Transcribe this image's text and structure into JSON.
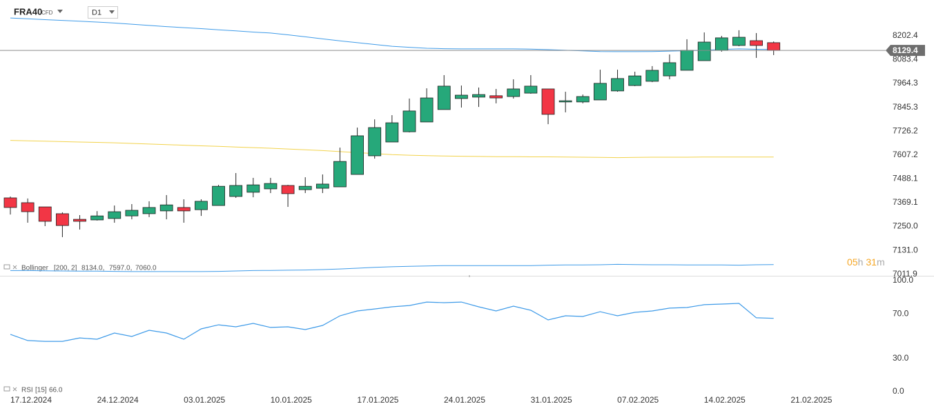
{
  "header": {
    "symbol": "FRA40",
    "instrument": "CFD",
    "timeframe": "D1"
  },
  "countdown": [
    "05",
    "h",
    "31",
    "m"
  ],
  "chart_data": [
    {
      "type": "candlestick",
      "open": [
        7393,
        7369,
        7348,
        7314,
        7286,
        7283,
        7290,
        7303,
        7314,
        7328,
        7345,
        7334,
        7355,
        7400,
        7421,
        7438,
        7455,
        7434,
        7441,
        7448,
        7510,
        7603,
        7672,
        7723,
        7772,
        7834,
        7889,
        7896,
        7903,
        7899,
        7916,
        7937,
        7872,
        7872,
        7882,
        7927,
        7954,
        7975,
        8002,
        8030,
        8078,
        8130,
        8154,
        8178,
        8168
      ],
      "high": [
        7400,
        7390,
        7348,
        7321,
        7307,
        7327,
        7355,
        7362,
        7376,
        7407,
        7386,
        7386,
        7458,
        7517,
        7493,
        7493,
        7458,
        7496,
        7510,
        7644,
        7744,
        7785,
        7806,
        7889,
        7940,
        8006,
        7954,
        7944,
        7937,
        7985,
        8006,
        7937,
        7923,
        7909,
        8033,
        8033,
        8023,
        8051,
        8109,
        8185,
        8219,
        8202,
        8230,
        8216,
        8174
      ],
      "low": [
        7310,
        7269,
        7252,
        7197,
        7235,
        7280,
        7269,
        7286,
        7297,
        7286,
        7269,
        7303,
        7355,
        7393,
        7396,
        7417,
        7348,
        7417,
        7417,
        7448,
        7510,
        7589,
        7672,
        7720,
        7772,
        7834,
        7844,
        7847,
        7865,
        7889,
        7913,
        7761,
        7820,
        7865,
        7882,
        7923,
        7951,
        7971,
        7985,
        8030,
        8078,
        8123,
        8150,
        8092,
        8106
      ],
      "close": [
        7345,
        7324,
        7276,
        7255,
        7276,
        7303,
        7324,
        7331,
        7345,
        7358,
        7328,
        7376,
        7451,
        7455,
        7458,
        7465,
        7414,
        7451,
        7462,
        7575,
        7703,
        7744,
        7768,
        7827,
        7892,
        7951,
        7906,
        7909,
        7892,
        7937,
        7951,
        7810,
        7878,
        7899,
        7965,
        7989,
        8002,
        8030,
        8068,
        8130,
        8171,
        8192,
        8195,
        8154,
        8130
      ],
      "up_color": "#26a87a",
      "down_color": "#f23645",
      "overlays": [
        {
          "color": "#3d9ae8",
          "values": [
            8291,
            8287,
            8283,
            8279,
            8275,
            8271,
            8266,
            8260,
            8254,
            8248,
            8243,
            8238,
            8232,
            8227,
            8221,
            8216,
            8207,
            8197,
            8187,
            8177,
            8168,
            8159,
            8150,
            8145,
            8140,
            8138,
            8137,
            8137,
            8137,
            8137,
            8136,
            8133,
            8130,
            8127,
            8124,
            8123,
            8123,
            8124,
            8126,
            8128,
            8130,
            8134,
            8137,
            8135,
            8134
          ]
        },
        {
          "color": "#f2d24a",
          "values": [
            7680,
            7678,
            7676,
            7674,
            7672,
            7670,
            7668,
            7665,
            7662,
            7659,
            7656,
            7653,
            7650,
            7647,
            7644,
            7641,
            7637,
            7633,
            7629,
            7624,
            7619,
            7614,
            7609,
            7606,
            7604,
            7602,
            7601,
            7600,
            7599,
            7599,
            7598,
            7598,
            7597,
            7596,
            7595,
            7594,
            7595,
            7596,
            7596,
            7596,
            7597,
            7597,
            7597,
            7597,
            7597
          ]
        },
        {
          "color": "#3d9ae8",
          "values": [
            7030,
            7030,
            7029,
            7028,
            7027,
            7027,
            7026,
            7025,
            7025,
            7025,
            7025,
            7025,
            7026,
            7028,
            7030,
            7031,
            7032,
            7033,
            7035,
            7038,
            7042,
            7046,
            7049,
            7051,
            7053,
            7055,
            7055,
            7055,
            7055,
            7055,
            7055,
            7057,
            7058,
            7058,
            7059,
            7061,
            7060,
            7059,
            7059,
            7058,
            7058,
            7058,
            7057,
            7059,
            7060
          ]
        }
      ],
      "indicator": {
        "name": "Bollinger",
        "params": "[200, 2]",
        "values_text": [
          "8134.0,",
          "7597.0,",
          "7060.0"
        ]
      },
      "last_price": 8129.4,
      "ylim": [
        7004,
        8381
      ],
      "yticks": [
        {
          "value": 7011.9,
          "label": "7011.9"
        },
        {
          "value": 7131.0,
          "label": "7131.0"
        },
        {
          "value": 7250.0,
          "label": "7250.0"
        },
        7369.1,
        7488.1,
        7607.2,
        7726.2,
        7845.3,
        7964.3,
        8083.4,
        8202.4
      ],
      "date_labels": [
        "17.12.2024",
        "24.12.2024",
        "03.01.2025",
        "10.01.2025",
        "17.01.2025",
        "24.01.2025",
        "31.01.2025",
        "07.02.2025",
        "14.02.2025",
        "21.02.2025"
      ]
    },
    {
      "type": "line",
      "color": "#3d9ae8",
      "values": [
        51.6,
        46.0,
        45.3,
        45.3,
        48.4,
        47.2,
        52.8,
        49.7,
        55.3,
        52.8,
        47.2,
        56.5,
        60.2,
        58.4,
        61.5,
        57.8,
        58.4,
        55.9,
        59.6,
        68.3,
        72.7,
        74.5,
        76.4,
        77.6,
        80.7,
        80.1,
        80.7,
        76.4,
        72.7,
        77.0,
        73.3,
        64.6,
        68.3,
        67.7,
        72.0,
        68.3,
        71.4,
        72.7,
        75.2,
        75.8,
        78.3,
        78.9,
        79.5,
        66.5,
        66.0
      ],
      "indicator": {
        "name": "RSI",
        "params": "[15]",
        "value_text": "66.0"
      },
      "ylim": [
        0,
        100
      ],
      "yticks": [
        {
          "value": 0,
          "label": "0.0"
        },
        {
          "value": 30,
          "label": "30.0"
        },
        {
          "value": 70,
          "label": "70.0"
        },
        {
          "value": 100,
          "label": "100.0"
        }
      ]
    }
  ]
}
